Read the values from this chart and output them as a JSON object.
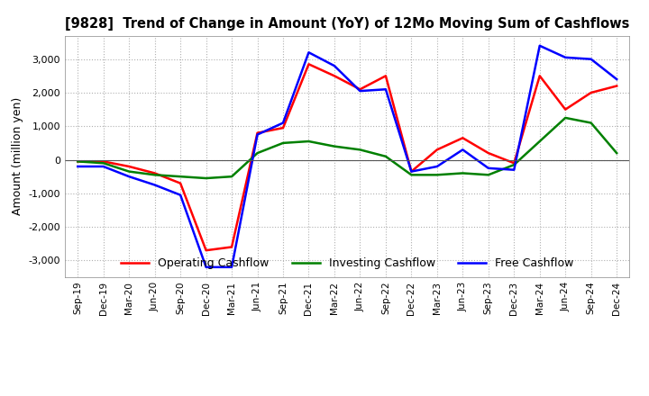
{
  "title": "[9828]  Trend of Change in Amount (YoY) of 12Mo Moving Sum of Cashflows",
  "ylabel": "Amount (million yen)",
  "ylim": [
    -3500,
    3700
  ],
  "yticks": [
    -3000,
    -2000,
    -1000,
    0,
    1000,
    2000,
    3000
  ],
  "background_color": "#ffffff",
  "grid_color": "#b0b0b0",
  "grid_style": "dotted",
  "x_labels": [
    "Sep-19",
    "Dec-19",
    "Mar-20",
    "Jun-20",
    "Sep-20",
    "Dec-20",
    "Mar-21",
    "Jun-21",
    "Sep-21",
    "Dec-21",
    "Mar-22",
    "Jun-22",
    "Sep-22",
    "Dec-22",
    "Mar-23",
    "Jun-23",
    "Sep-23",
    "Dec-23",
    "Mar-24",
    "Jun-24",
    "Sep-24",
    "Dec-24"
  ],
  "operating": [
    -50,
    -50,
    -200,
    -400,
    -700,
    -2700,
    -2600,
    800,
    950,
    2850,
    2500,
    2100,
    2500,
    -350,
    300,
    650,
    200,
    -100,
    2500,
    1500,
    2000,
    2200
  ],
  "investing": [
    -50,
    -100,
    -350,
    -450,
    -500,
    -550,
    -500,
    200,
    500,
    550,
    400,
    300,
    100,
    -450,
    -450,
    -400,
    -450,
    -150,
    550,
    1250,
    1100,
    200
  ],
  "free": [
    -200,
    -200,
    -500,
    -750,
    -1050,
    -3200,
    -3200,
    750,
    1100,
    3200,
    2800,
    2050,
    2100,
    -350,
    -200,
    300,
    -250,
    -300,
    3400,
    3050,
    3000,
    2400
  ],
  "op_color": "#ff0000",
  "inv_color": "#008000",
  "free_color": "#0000ff",
  "line_width": 1.8
}
